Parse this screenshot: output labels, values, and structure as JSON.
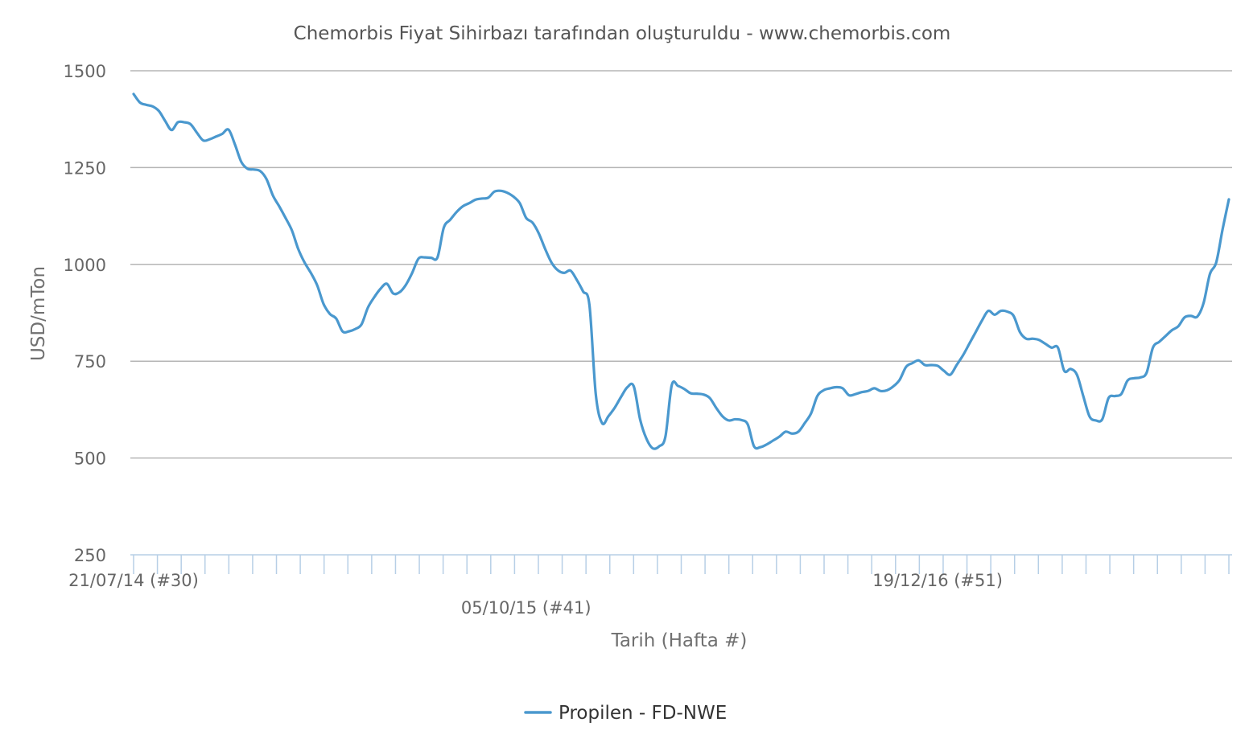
{
  "chart_data": {
    "type": "line",
    "title": "Chemorbis Fiyat Sihirbazı tarafından oluşturuldu - www.chemorbis.com",
    "xlabel": "Tarih (Hafta #)",
    "ylabel": "USD/mTon",
    "ylim": [
      250,
      1500
    ],
    "yticks": [
      "1500",
      "1250",
      "1000",
      "750",
      "500",
      "250"
    ],
    "grid": true,
    "legend_position": "bottom-center",
    "x_tick_labels": [
      {
        "label": "21/07/14 (#30)",
        "index": 0
      },
      {
        "label": "05/10/15 (#41)",
        "index": 62
      },
      {
        "label": "19/12/16 (#51)",
        "index": 127
      }
    ],
    "x_start": "21/07/14",
    "x_step_weeks": 1,
    "colors": {
      "series": "#4a98ce",
      "grid": "#b5b5b5",
      "ticks": "#b7cfe6"
    },
    "series": [
      {
        "name": "Propilen - FD-NWE",
        "values": [
          1440,
          1418,
          1412,
          1408,
          1396,
          1370,
          1347,
          1367,
          1367,
          1362,
          1340,
          1320,
          1323,
          1330,
          1337,
          1348,
          1310,
          1265,
          1247,
          1245,
          1241,
          1220,
          1178,
          1150,
          1120,
          1088,
          1040,
          1005,
          978,
          946,
          898,
          872,
          860,
          827,
          827,
          833,
          845,
          888,
          915,
          937,
          950,
          925,
          928,
          947,
          978,
          1015,
          1018,
          1017,
          1018,
          1095,
          1115,
          1135,
          1150,
          1158,
          1167,
          1170,
          1172,
          1188,
          1190,
          1185,
          1175,
          1158,
          1120,
          1108,
          1080,
          1040,
          1005,
          985,
          978,
          984,
          960,
          930,
          895,
          665,
          590,
          608,
          630,
          658,
          683,
          685,
          600,
          550,
          525,
          530,
          555,
          688,
          686,
          678,
          667,
          666,
          664,
          655,
          630,
          608,
          597,
          600,
          598,
          587,
          530,
          528,
          535,
          545,
          555,
          568,
          563,
          568,
          590,
          615,
          660,
          675,
          680,
          683,
          680,
          662,
          665,
          670,
          673,
          680,
          673,
          675,
          685,
          702,
          735,
          745,
          752,
          740,
          740,
          738,
          725,
          715,
          740,
          765,
          795,
          825,
          855,
          880,
          870,
          880,
          878,
          867,
          825,
          808,
          808,
          805,
          795,
          785,
          785,
          725,
          730,
          715,
          660,
          607,
          597,
          600,
          655,
          660,
          665,
          700,
          706,
          708,
          720,
          785,
          800,
          815,
          830,
          840,
          863,
          867,
          865,
          900,
          975,
          1005,
          1090,
          1168
        ]
      }
    ]
  }
}
